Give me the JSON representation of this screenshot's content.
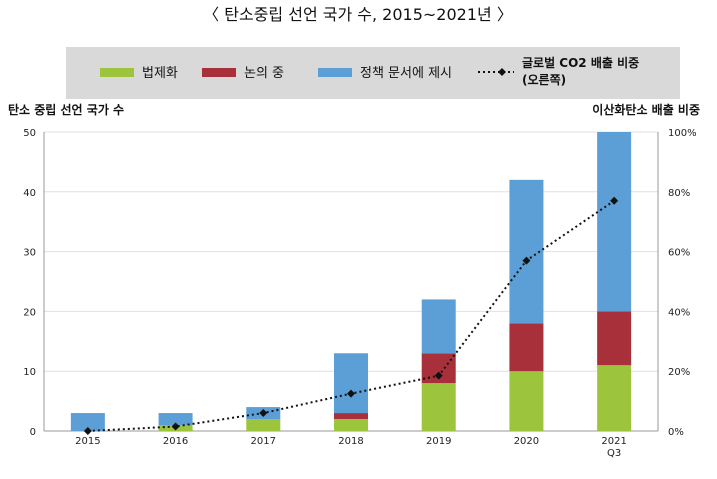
{
  "chart_data": {
    "type": "bar",
    "title": "〈 탄소중립 선언 국가 수, 2015~2021년 〉",
    "y_left_label": "탄소 중립 선언 국가 수",
    "y_right_label": "이산화탄소 배출 비중",
    "categories": [
      "2015",
      "2016",
      "2017",
      "2018",
      "2019",
      "2020",
      "2021"
    ],
    "category_sublabels": [
      "",
      "",
      "",
      "",
      "",
      "",
      "Q3"
    ],
    "y_left_ticks": [
      "0",
      "10",
      "20",
      "30",
      "40",
      "50"
    ],
    "y_right_ticks": [
      "0%",
      "20%",
      "40%",
      "60%",
      "80%",
      "100%"
    ],
    "ylim_left": [
      0,
      50
    ],
    "ylim_right": [
      0,
      100
    ],
    "grid": true,
    "legend_position": "top",
    "series": [
      {
        "name": "법제화",
        "kind": "stacked-bar",
        "color": "#9cc43c",
        "values": [
          0,
          1,
          2,
          2,
          8,
          10,
          11
        ]
      },
      {
        "name": "논의 중",
        "kind": "stacked-bar",
        "color": "#a7303a",
        "values": [
          0,
          0,
          0,
          1,
          5,
          8,
          9
        ]
      },
      {
        "name": "정책 문서에 제시",
        "kind": "stacked-bar",
        "color": "#5b9fd6",
        "values": [
          3,
          2,
          2,
          10,
          9,
          24,
          30
        ]
      },
      {
        "name": "글로벌 CO2 배출 비중\n(오른쪽)",
        "kind": "line",
        "axis": "right",
        "color": "#111111",
        "values": [
          0,
          1.5,
          6,
          12.5,
          18.5,
          57,
          77
        ]
      }
    ]
  }
}
